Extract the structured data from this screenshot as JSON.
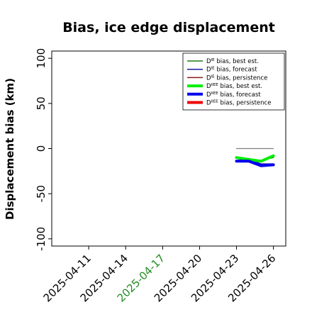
{
  "chart_data": {
    "type": "line",
    "title": "Bias, ice edge displacement",
    "xlabel": "",
    "ylabel": "Displacement bias (km)",
    "xlim": [
      "2025-04-08",
      "2025-04-27"
    ],
    "ylim": [
      -108,
      108
    ],
    "yticks": [
      -100,
      -50,
      0,
      50,
      100
    ],
    "yticklabels": [
      "-100",
      "-50",
      "0",
      "50",
      "100"
    ],
    "xticks": [
      "2025-04-11",
      "2025-04-14",
      "2025-04-17",
      "2025-04-20",
      "2025-04-23",
      "2025-04-26"
    ],
    "xticklabels": [
      "2025-04-11",
      "2025-04-14",
      "2025-04-17",
      "2025-04-20",
      "2025-04-23",
      "2025-04-26"
    ],
    "highlighted_xtick": "2025-04-17",
    "highlight_color": "#228b22",
    "legend_position": "top-right",
    "grid": false,
    "series": [
      {
        "name_main": "D",
        "name_sup": "IE",
        "name_rest": " bias, best est.",
        "color": "#1a7a1a",
        "width": 1.5,
        "x": [
          "2025-04-23",
          "2025-04-24",
          "2025-04-25",
          "2025-04-26"
        ],
        "y": [
          -10,
          -12,
          -13,
          -10
        ]
      },
      {
        "name_main": "D",
        "name_sup": "IE",
        "name_rest": " bias, forecast",
        "color": "#1a1aa0",
        "width": 1.5,
        "x": [
          "2025-04-23",
          "2025-04-24",
          "2025-04-25",
          "2025-04-26"
        ],
        "y": [
          -13,
          -12,
          -17,
          -17
        ]
      },
      {
        "name_main": "D",
        "name_sup": "IE",
        "name_rest": " bias, persistence",
        "color": "#8b1a1a",
        "width": 1.5,
        "x": [],
        "y": []
      },
      {
        "name_main": "D",
        "name_sup": "IIEE",
        "name_rest": " bias, best est.",
        "color": "#00ee00",
        "width": 4,
        "x": [
          "2025-04-23",
          "2025-04-24",
          "2025-04-25",
          "2025-04-26"
        ],
        "y": [
          -10,
          -12,
          -14,
          -8
        ]
      },
      {
        "name_main": "D",
        "name_sup": "IIEE",
        "name_rest": " bias, forecast",
        "color": "#0000ee",
        "width": 4,
        "x": [
          "2025-04-23",
          "2025-04-24",
          "2025-04-25",
          "2025-04-26"
        ],
        "y": [
          -14,
          -14,
          -19,
          -18
        ]
      },
      {
        "name_main": "D",
        "name_sup": "IIEE",
        "name_rest": " bias, persistence",
        "color": "#ee0000",
        "width": 4,
        "x": [],
        "y": []
      },
      {
        "name_main": "",
        "name_sup": "",
        "name_rest": "",
        "color": "#808080",
        "width": 1.2,
        "in_legend": false,
        "x": [
          "2025-04-23",
          "2025-04-26"
        ],
        "y": [
          0,
          0
        ]
      }
    ]
  }
}
